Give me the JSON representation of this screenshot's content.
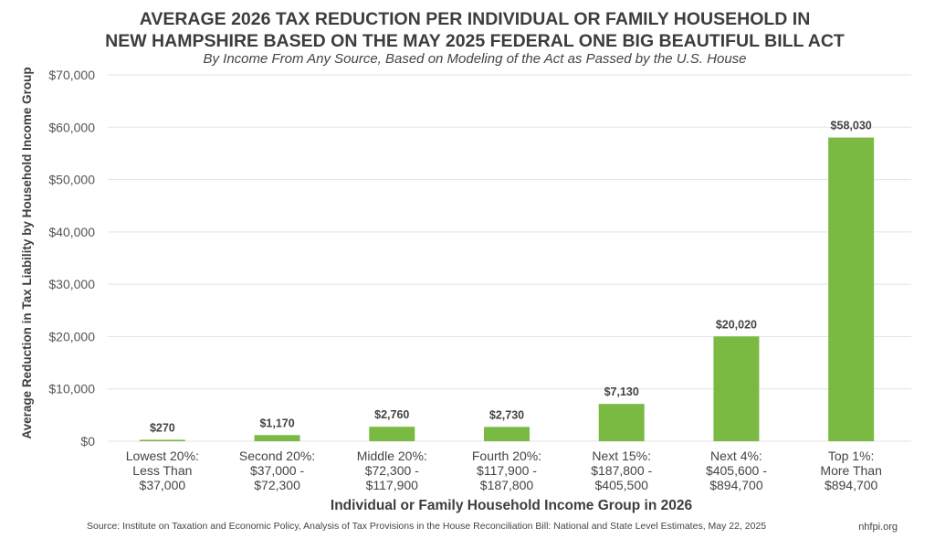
{
  "chart_data": {
    "type": "bar",
    "title_lines": [
      "AVERAGE 2026 TAX REDUCTION PER INDIVIDUAL OR FAMILY HOUSEHOLD IN",
      "NEW HAMPSHIRE BASED ON THE MAY 2025 FEDERAL ONE BIG BEAUTIFUL BILL ACT"
    ],
    "subtitle": "By Income From Any Source, Based on Modeling of the Act as Passed by the U.S. House",
    "xlabel": "Individual or Family Household Income Group in 2026",
    "ylabel": "Average Reduction in Tax Liability by Household Income Group",
    "ylim": [
      0,
      70000
    ],
    "yticks": [
      0,
      10000,
      20000,
      30000,
      40000,
      50000,
      60000,
      70000
    ],
    "ytick_labels": [
      "$0",
      "$10,000",
      "$20,000",
      "$30,000",
      "$40,000",
      "$50,000",
      "$60,000",
      "$70,000"
    ],
    "grid": true,
    "bar_color": "#7aba42",
    "categories": [
      [
        "Lowest 20%:",
        "Less Than",
        "$37,000"
      ],
      [
        "Second 20%:",
        "$37,000 -",
        "$72,300"
      ],
      [
        "Middle 20%:",
        "$72,300 -",
        "$117,900"
      ],
      [
        "Fourth 20%:",
        "$117,900 -",
        "$187,800"
      ],
      [
        "Next 15%:",
        "$187,800 -",
        "$405,500"
      ],
      [
        "Next 4%:",
        "$405,600 -",
        "$894,700"
      ],
      [
        "Top 1%:",
        "More Than",
        "$894,700"
      ]
    ],
    "values": [
      270,
      1170,
      2760,
      2730,
      7130,
      20020,
      58030
    ],
    "data_labels": [
      "$270",
      "$1,170",
      "$2,760",
      "$2,730",
      "$7,130",
      "$20,020",
      "$58,030"
    ]
  },
  "footer": {
    "source": "Source: Institute on Taxation and Economic Policy, Analysis of Tax Provisions in the House Reconciliation Bill: National and State Level Estimates, May 22, 2025",
    "credit": "nhfpi.org"
  }
}
